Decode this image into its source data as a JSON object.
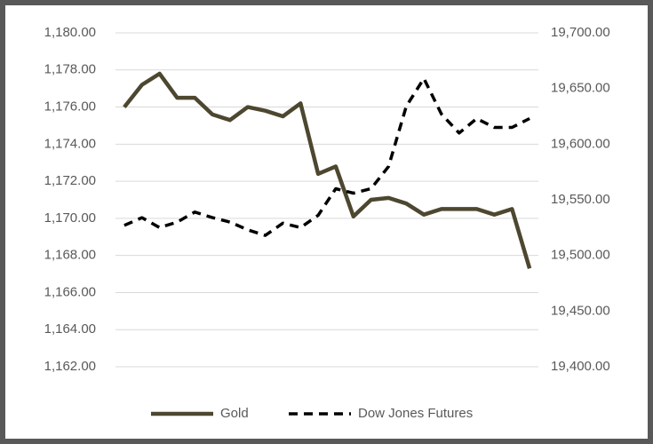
{
  "chart_data": {
    "type": "line",
    "categories": [
      null,
      null,
      null,
      null,
      null,
      null,
      null,
      null,
      null,
      null,
      null,
      null,
      null,
      null,
      null,
      null,
      null,
      null,
      null,
      null,
      null,
      null,
      null,
      null
    ],
    "series": [
      {
        "name": "Gold",
        "color": "#4d4730",
        "dash": false,
        "axis": "y",
        "values": [
          1176.0,
          1177.2,
          1177.8,
          1176.5,
          1176.5,
          1175.6,
          1175.3,
          1176.0,
          1175.8,
          1175.5,
          1176.2,
          1172.4,
          1172.8,
          1170.1,
          1171.0,
          1171.1,
          1170.8,
          1170.2,
          1170.5,
          1170.5,
          1170.5,
          1170.2,
          1170.5,
          1167.3
        ]
      },
      {
        "name": "Dow Jones Futures",
        "color": "#000000",
        "dash": true,
        "axis": "y2",
        "values": [
          19527,
          19534,
          19525,
          19530,
          19539,
          19534,
          19530,
          19523,
          19518,
          19529,
          19525,
          19536,
          19560,
          19556,
          19560,
          19580,
          19634,
          19659,
          19627,
          19610,
          19623,
          19615,
          19615,
          19623
        ]
      }
    ],
    "ylim": [
      1162,
      1180
    ],
    "yticks": [
      {
        "value": 1180,
        "label": "1,180.00"
      },
      {
        "value": 1178,
        "label": "1,178.00"
      },
      {
        "value": 1176,
        "label": "1,176.00"
      },
      {
        "value": 1174,
        "label": "1,174.00"
      },
      {
        "value": 1172,
        "label": "1,172.00"
      },
      {
        "value": 1170,
        "label": "1,170.00"
      },
      {
        "value": 1168,
        "label": "1,168.00"
      },
      {
        "value": 1166,
        "label": "1,166.00"
      },
      {
        "value": 1164,
        "label": "1,164.00"
      },
      {
        "value": 1162,
        "label": "1,162.00"
      }
    ],
    "y2lim": [
      19400,
      19700
    ],
    "y2ticks": [
      {
        "value": 19700,
        "label": "19,700.00"
      },
      {
        "value": 19650,
        "label": "19,650.00"
      },
      {
        "value": 19600,
        "label": "19,600.00"
      },
      {
        "value": 19550,
        "label": "19,550.00"
      },
      {
        "value": 19500,
        "label": "19,500.00"
      },
      {
        "value": 19450,
        "label": "19,450.00"
      },
      {
        "value": 19400,
        "label": "19,400.00"
      }
    ],
    "grid": true,
    "legend": "bottom"
  }
}
